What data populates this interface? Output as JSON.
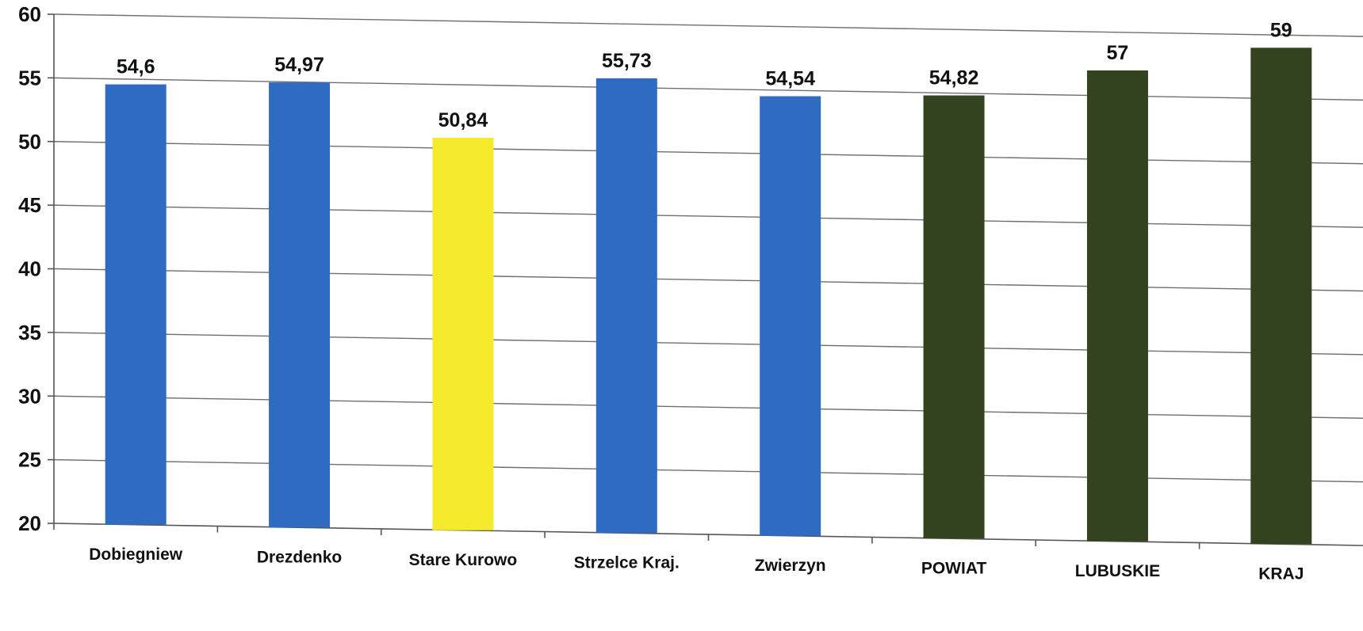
{
  "chart_data": {
    "type": "bar",
    "title": "",
    "xlabel": "",
    "ylabel": "",
    "ylim": [
      20,
      60
    ],
    "yticks": [
      20,
      25,
      30,
      35,
      40,
      45,
      50,
      55,
      60
    ],
    "grid": true,
    "legend": "none",
    "categories": [
      "Dobiegniew",
      "Drezdenko",
      "Stare Kurowo",
      "Strzelce Kraj.",
      "Zwierzyn",
      "POWIAT",
      "LUBUSKIE",
      "KRAJ"
    ],
    "values": [
      54.6,
      54.97,
      50.84,
      55.73,
      54.54,
      54.82,
      57,
      59
    ],
    "value_labels": [
      "54,6",
      "54,97",
      "50,84",
      "55,73",
      "54,54",
      "54,82",
      "57",
      "59"
    ],
    "colors": [
      "#2f6bc0",
      "#2f6bc0",
      "#f5ea2c",
      "#2f6bc0",
      "#2f6bc0",
      "#34431f",
      "#34431f",
      "#34431f"
    ]
  }
}
